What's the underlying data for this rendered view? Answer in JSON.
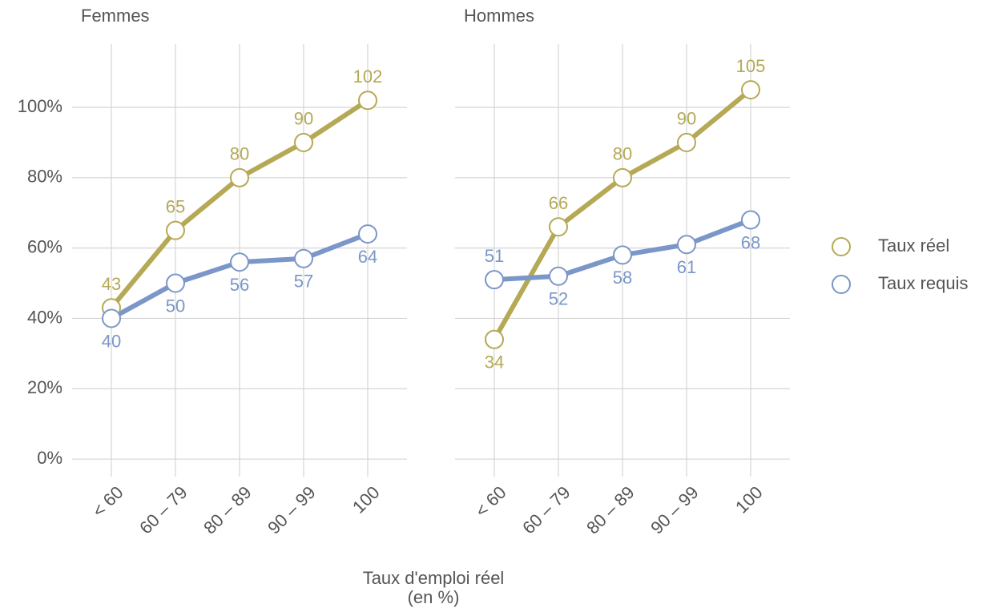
{
  "chart_data": [
    {
      "type": "line",
      "title": "Femmes",
      "categories": [
        "< 60",
        "60 – 79",
        "80 – 89",
        "90 – 99",
        "100"
      ],
      "series": [
        {
          "name": "Taux réel",
          "color": "#b5a955",
          "values": [
            43,
            65,
            80,
            90,
            102
          ]
        },
        {
          "name": "Taux requis",
          "color": "#7b96c8",
          "values": [
            40,
            50,
            56,
            57,
            64
          ]
        }
      ],
      "ylim": [
        -5,
        118
      ],
      "yticks": [
        {
          "value": 0,
          "label": "0%"
        },
        {
          "value": 20,
          "label": "20%"
        },
        {
          "value": 40,
          "label": "40%"
        },
        {
          "value": 60,
          "label": "60%"
        },
        {
          "value": 80,
          "label": "80%"
        },
        {
          "value": 100,
          "label": "100%"
        }
      ],
      "grid": true
    },
    {
      "type": "line",
      "title": "Hommes",
      "categories": [
        "< 60",
        "60 – 79",
        "80 – 89",
        "90 – 99",
        "100"
      ],
      "series": [
        {
          "color": "#b5a955",
          "values": [
            34,
            66,
            80,
            90,
            105
          ]
        },
        {
          "color": "#7b96c8",
          "values": [
            51,
            52,
            58,
            61,
            68
          ]
        }
      ],
      "ylim": [
        -5,
        118
      ],
      "yticks": [
        {
          "value": 0
        },
        {
          "value": 20
        },
        {
          "value": 40
        },
        {
          "value": 60
        },
        {
          "value": 80
        },
        {
          "value": 100
        }
      ],
      "grid": true
    }
  ],
  "x_label": [
    "Taux d'emploi réel",
    "(en %)"
  ],
  "legend": "right"
}
